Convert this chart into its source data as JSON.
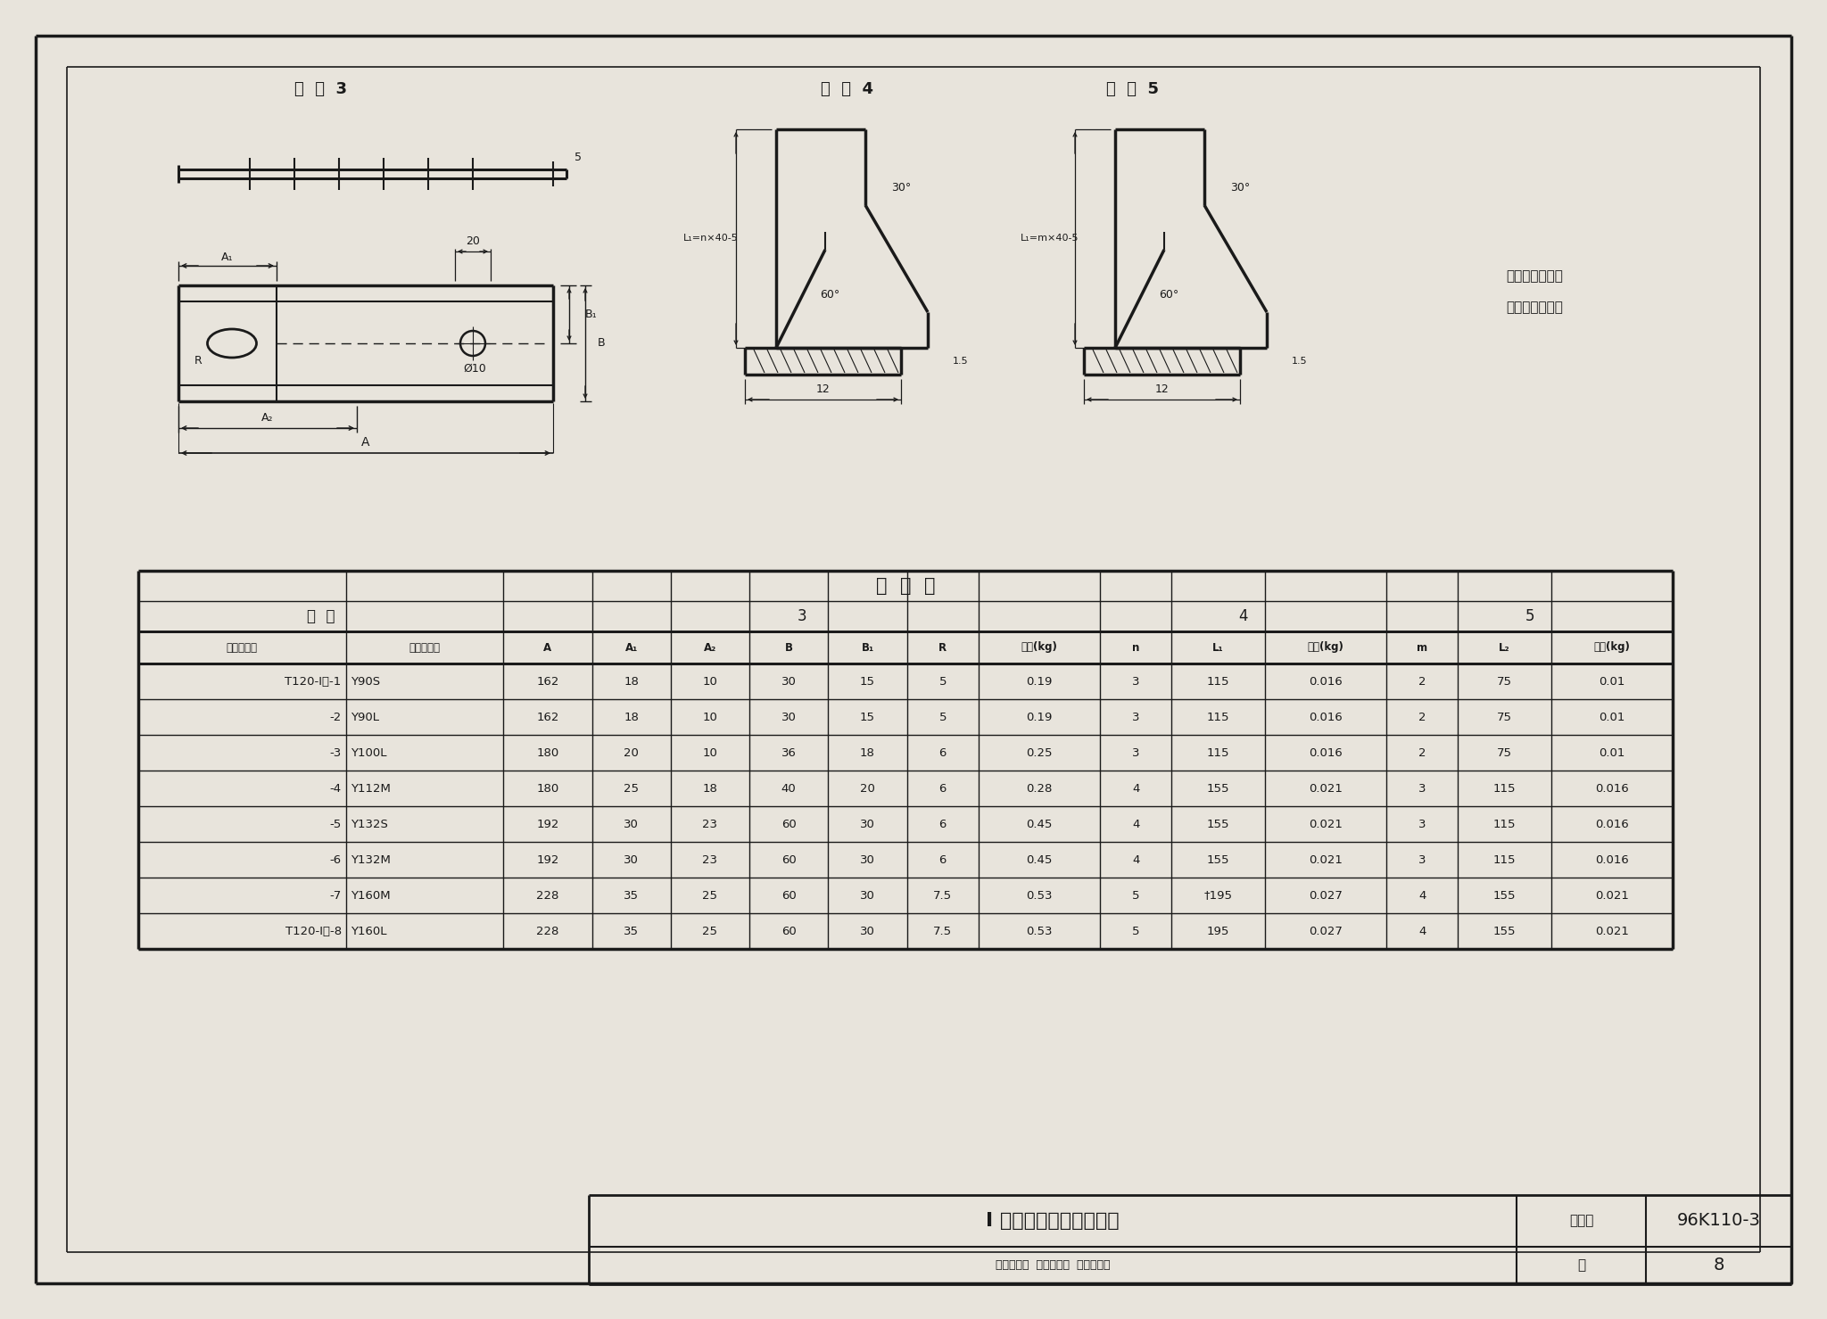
{
  "bg_color": "#e8e4dc",
  "paper_color": "#f5f2ec",
  "border_color": "#000000",
  "title_drawing": "I 型电动机防雨罩零件图",
  "atlas_no": "图集号",
  "atlas_val": "96K110-3",
  "page_label": "页",
  "page_num": "8",
  "part3_label": "件  号  3",
  "part4_label": "件  号  4",
  "part5_label": "件  号  5",
  "note_line1": "所有零件的加工",
  "note_line2": "边均需去除毛刺",
  "table_title": "尺  寸  表",
  "table_part_label": "件  号",
  "table_part3": "3",
  "table_part4": "4",
  "table_part5": "5",
  "col_headers": [
    "防雨罩编号",
    "电动机型号",
    "A",
    "A₁",
    "A₂",
    "B",
    "B₁",
    "R",
    "质量(kg)",
    "n",
    "L₁",
    "质量(kg)",
    "m",
    "L₂",
    "质量(kg)"
  ],
  "rows": [
    [
      "T120-I型-1",
      "Y90S",
      "162",
      "18",
      "10",
      "30",
      "15",
      "5",
      "0.19",
      "3",
      "115",
      "0.016",
      "2",
      "75",
      "0.01"
    ],
    [
      "-2",
      "Y90L",
      "162",
      "18",
      "10",
      "30",
      "15",
      "5",
      "0.19",
      "3",
      "115",
      "0.016",
      "2",
      "75",
      "0.01"
    ],
    [
      "-3",
      "Y100L",
      "180",
      "20",
      "10",
      "36",
      "18",
      "6",
      "0.25",
      "3",
      "115",
      "0.016",
      "2",
      "75",
      "0.01"
    ],
    [
      "-4",
      "Y112M",
      "180",
      "25",
      "18",
      "40",
      "20",
      "6",
      "0.28",
      "4",
      "155",
      "0.021",
      "3",
      "115",
      "0.016"
    ],
    [
      "-5",
      "Y132S",
      "192",
      "30",
      "23",
      "60",
      "30",
      "6",
      "0.45",
      "4",
      "155",
      "0.021",
      "3",
      "115",
      "0.016"
    ],
    [
      "-6",
      "Y132M",
      "192",
      "30",
      "23",
      "60",
      "30",
      "6",
      "0.45",
      "4",
      "155",
      "0.021",
      "3",
      "115",
      "0.016"
    ],
    [
      "-7",
      "Y160M",
      "228",
      "35",
      "25",
      "60",
      "30",
      "7.5",
      "0.53",
      "5",
      "†195",
      "0.027",
      "4",
      "155",
      "0.021"
    ],
    [
      "T120-I型-8",
      "Y160L",
      "228",
      "35",
      "25",
      "60",
      "30",
      "7.5",
      "0.53",
      "5",
      "195",
      "0.027",
      "4",
      "155",
      "0.021"
    ]
  ],
  "footer_text": "审阅沈乐昏  校对中容达  设计彭长安"
}
